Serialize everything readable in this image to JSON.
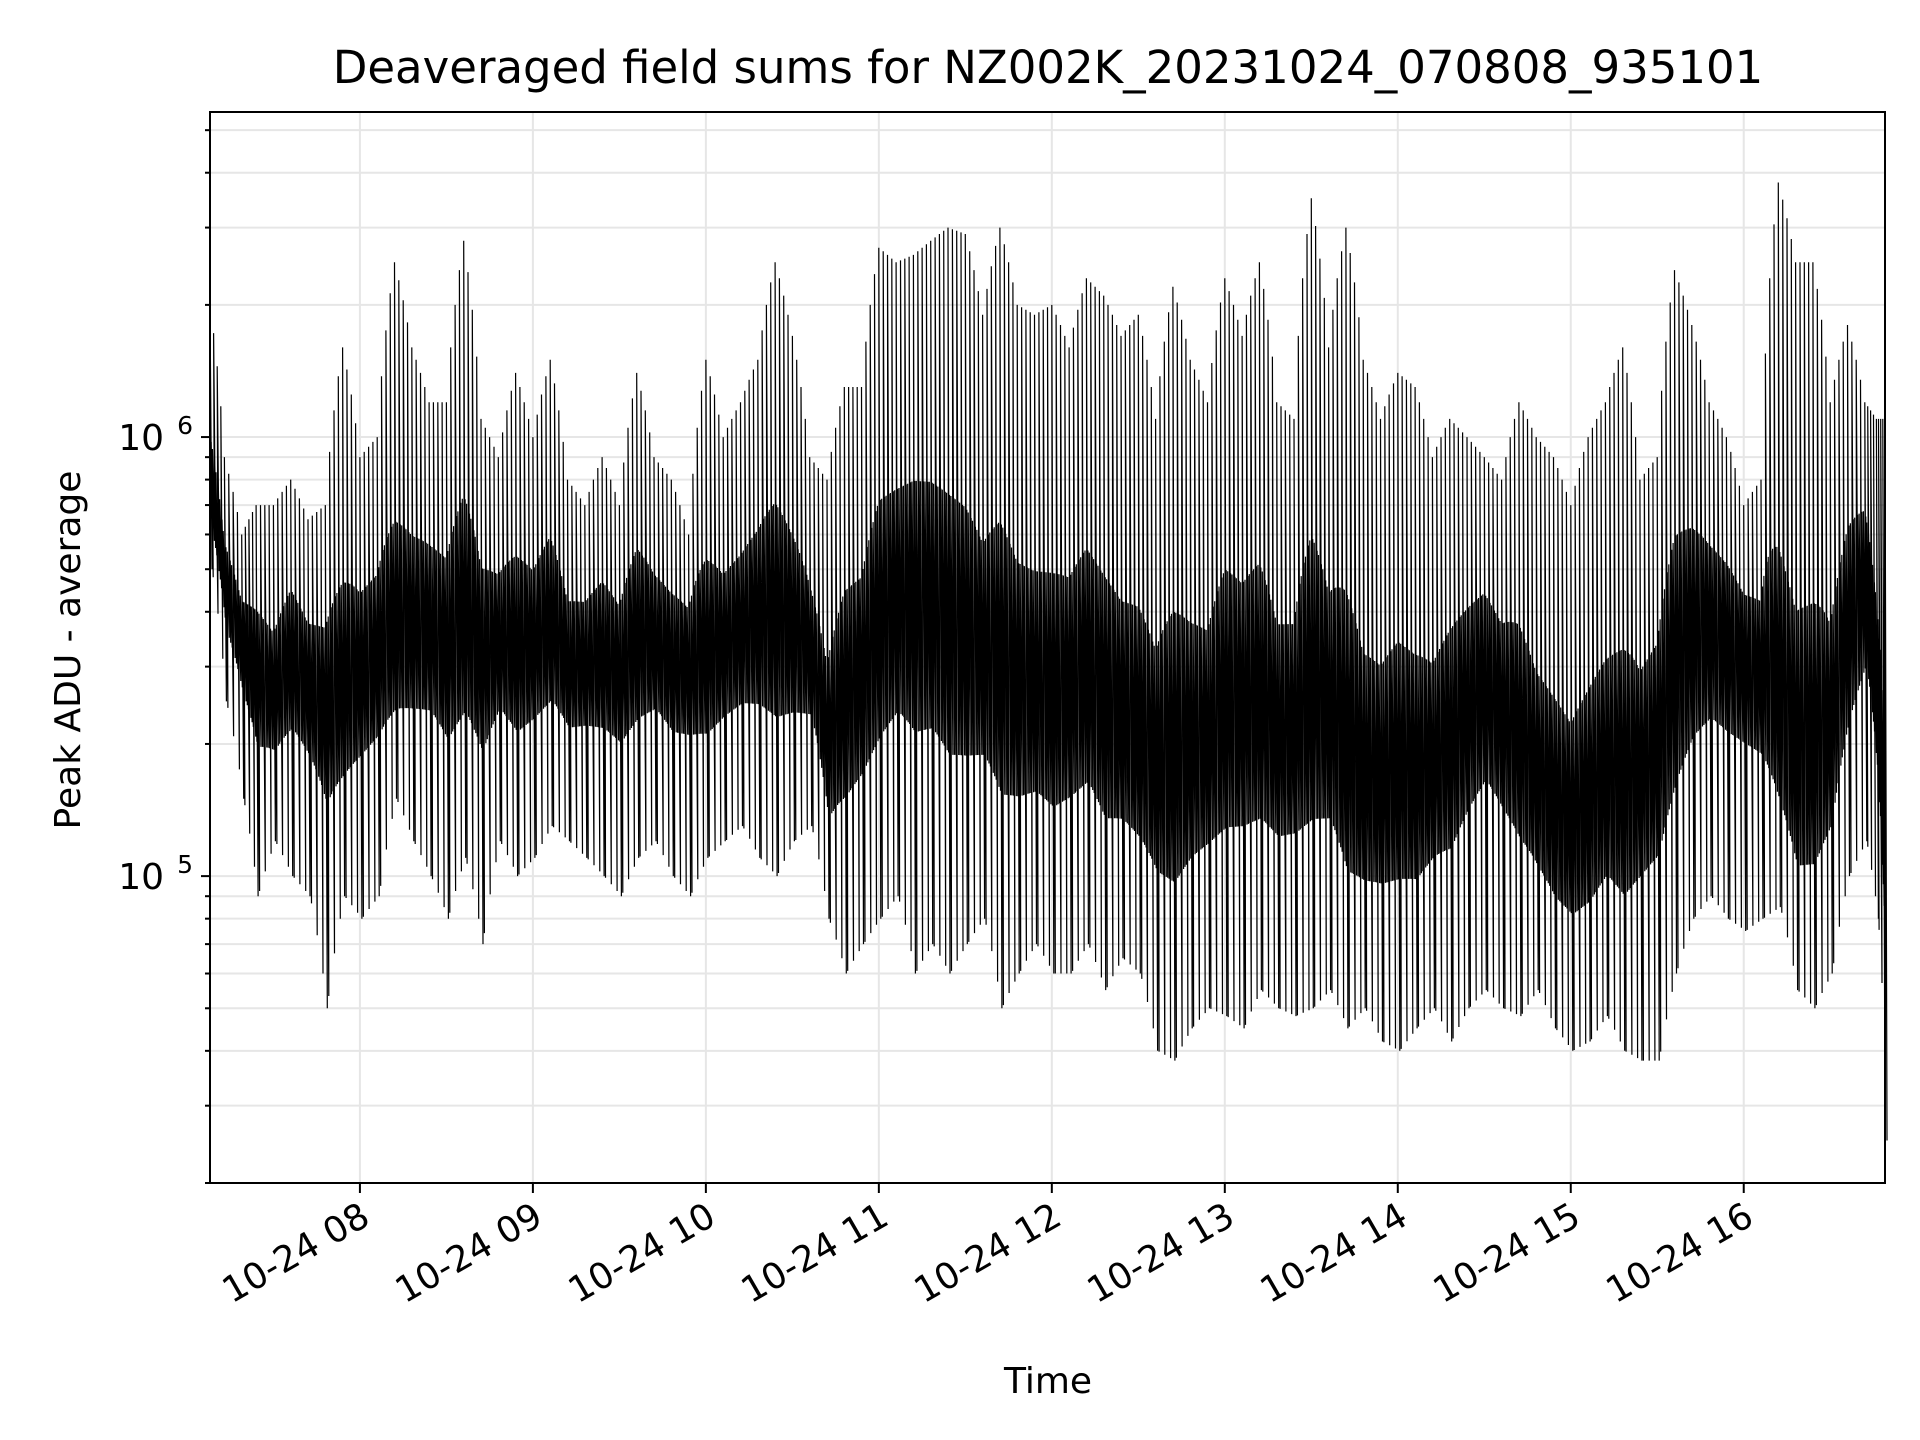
{
  "chart_data": {
    "type": "line",
    "title": "Deaveraged field sums for NZ002K_20231024_070808_935101",
    "xlabel": "Time",
    "ylabel": "Peak ADU - average",
    "yscale": "log",
    "ylim": [
      20000,
      5500000
    ],
    "xlim": [
      "2023-10-24 07:08",
      "2023-10-24 16:49"
    ],
    "grid": true,
    "line_color": "#000000",
    "grid_color": "#e6e6e6",
    "x_ticks": [
      {
        "value": "2023-10-24 08:00",
        "label": "10-24 08"
      },
      {
        "value": "2023-10-24 09:00",
        "label": "10-24 09"
      },
      {
        "value": "2023-10-24 10:00",
        "label": "10-24 10"
      },
      {
        "value": "2023-10-24 11:00",
        "label": "10-24 11"
      },
      {
        "value": "2023-10-24 12:00",
        "label": "10-24 12"
      },
      {
        "value": "2023-10-24 13:00",
        "label": "10-24 13"
      },
      {
        "value": "2023-10-24 14:00",
        "label": "10-24 14"
      },
      {
        "value": "2023-10-24 15:00",
        "label": "10-24 15"
      },
      {
        "value": "2023-10-24 16:00",
        "label": "10-24 16"
      }
    ],
    "y_ticks": [
      {
        "value": 100000,
        "label_base": "10",
        "label_exp": "5"
      },
      {
        "value": 1000000,
        "label_base": "10",
        "label_exp": "6"
      }
    ],
    "series": [
      {
        "x": [
          "2023-10-24 07:08",
          "2023-10-24 07:13",
          "2023-10-24 07:19",
          "2023-10-24 07:24",
          "2023-10-24 07:30",
          "2023-10-24 07:36",
          "2023-10-24 07:42",
          "2023-10-24 07:48",
          "2023-10-24 07:54",
          "2023-10-24 08:00",
          "2023-10-24 08:06",
          "2023-10-24 08:12",
          "2023-10-24 08:18",
          "2023-10-24 08:24",
          "2023-10-24 08:30",
          "2023-10-24 08:36",
          "2023-10-24 08:42",
          "2023-10-24 08:48",
          "2023-10-24 08:54",
          "2023-10-24 09:00",
          "2023-10-24 09:06",
          "2023-10-24 09:12",
          "2023-10-24 09:18",
          "2023-10-24 09:24",
          "2023-10-24 09:30",
          "2023-10-24 09:36",
          "2023-10-24 09:42",
          "2023-10-24 09:48",
          "2023-10-24 09:54",
          "2023-10-24 10:00",
          "2023-10-24 10:06",
          "2023-10-24 10:12",
          "2023-10-24 10:18",
          "2023-10-24 10:24",
          "2023-10-24 10:30",
          "2023-10-24 10:36",
          "2023-10-24 10:42",
          "2023-10-24 10:48",
          "2023-10-24 10:54",
          "2023-10-24 11:00",
          "2023-10-24 11:06",
          "2023-10-24 11:12",
          "2023-10-24 11:18",
          "2023-10-24 11:24",
          "2023-10-24 11:30",
          "2023-10-24 11:36",
          "2023-10-24 11:42",
          "2023-10-24 11:48",
          "2023-10-24 11:54",
          "2023-10-24 12:00",
          "2023-10-24 12:06",
          "2023-10-24 12:12",
          "2023-10-24 12:18",
          "2023-10-24 12:24",
          "2023-10-24 12:30",
          "2023-10-24 12:36",
          "2023-10-24 12:42",
          "2023-10-24 12:48",
          "2023-10-24 12:54",
          "2023-10-24 13:00",
          "2023-10-24 13:06",
          "2023-10-24 13:12",
          "2023-10-24 13:18",
          "2023-10-24 13:24",
          "2023-10-24 13:30",
          "2023-10-24 13:36",
          "2023-10-24 13:42",
          "2023-10-24 13:48",
          "2023-10-24 13:54",
          "2023-10-24 14:00",
          "2023-10-24 14:06",
          "2023-10-24 14:12",
          "2023-10-24 14:18",
          "2023-10-24 14:24",
          "2023-10-24 14:30",
          "2023-10-24 14:36",
          "2023-10-24 14:42",
          "2023-10-24 14:48",
          "2023-10-24 14:54",
          "2023-10-24 15:00",
          "2023-10-24 15:06",
          "2023-10-24 15:12",
          "2023-10-24 15:18",
          "2023-10-24 15:24",
          "2023-10-24 15:30",
          "2023-10-24 15:36",
          "2023-10-24 15:42",
          "2023-10-24 15:48",
          "2023-10-24 15:54",
          "2023-10-24 16:00",
          "2023-10-24 16:06",
          "2023-10-24 16:12",
          "2023-10-24 16:18",
          "2023-10-24 16:24",
          "2023-10-24 16:30",
          "2023-10-24 16:36",
          "2023-10-24 16:42",
          "2023-10-24 16:46",
          "2023-10-24 16:49"
        ],
        "y": [
          700000,
          450000,
          350000,
          300000,
          250000,
          330000,
          280000,
          260000,
          240000,
          300000,
          330000,
          310000,
          350000,
          380000,
          340000,
          360000,
          330000,
          350000,
          320000,
          340000,
          360000,
          300000,
          320000,
          330000,
          310000,
          340000,
          350000,
          320000,
          330000,
          300000,
          330000,
          350000,
          380000,
          360000,
          340000,
          320000,
          180000,
          250000,
          280000,
          350000,
          400000,
          420000,
          400000,
          350000,
          320000,
          300000,
          280000,
          250000,
          240000,
          230000,
          250000,
          260000,
          220000,
          200000,
          180000,
          170000,
          160000,
          180000,
          190000,
          220000,
          230000,
          220000,
          200000,
          210000,
          230000,
          220000,
          160000,
          140000,
          150000,
          160000,
          150000,
          170000,
          200000,
          250000,
          300000,
          250000,
          200000,
          150000,
          130000,
          120000,
          130000,
          150000,
          140000,
          170000,
          200000,
          280000,
          350000,
          380000,
          360000,
          340000,
          300000,
          200000,
          150000,
          160000,
          200000,
          350000,
          500000,
          250000,
          60000
        ],
        "hi": [
          2000000,
          900000,
          600000,
          700000,
          700000,
          800000,
          650000,
          700000,
          1600000,
          900000,
          1000000,
          2500000,
          1600000,
          1200000,
          1200000,
          2800000,
          1100000,
          900000,
          1400000,
          1000000,
          1500000,
          800000,
          700000,
          900000,
          700000,
          1400000,
          900000,
          800000,
          600000,
          1500000,
          1000000,
          1200000,
          1500000,
          2500000,
          1700000,
          900000,
          800000,
          1300000,
          1300000,
          2700000,
          2500000,
          2600000,
          2800000,
          3000000,
          2900000,
          1900000,
          3000000,
          2000000,
          1900000,
          2000000,
          1600000,
          2300000,
          2100000,
          1700000,
          1900000,
          1100000,
          2200000,
          1500000,
          1200000,
          2300000,
          1700000,
          2500000,
          1200000,
          1100000,
          3500000,
          1600000,
          3000000,
          1500000,
          1100000,
          1400000,
          1300000,
          900000,
          1100000,
          1000000,
          900000,
          800000,
          1200000,
          1000000,
          900000,
          700000,
          1000000,
          1200000,
          1600000,
          800000,
          900000,
          2400000,
          1800000,
          1200000,
          1000000,
          700000,
          800000,
          3800000,
          2500000,
          2500000,
          1200000,
          1800000,
          1200000,
          1100000,
          1100000
        ],
        "lo": [
          500000,
          250000,
          150000,
          90000,
          120000,
          100000,
          90000,
          50000,
          90000,
          80000,
          90000,
          150000,
          120000,
          100000,
          80000,
          110000,
          70000,
          120000,
          100000,
          110000,
          130000,
          120000,
          110000,
          100000,
          90000,
          110000,
          120000,
          100000,
          90000,
          110000,
          120000,
          130000,
          110000,
          100000,
          120000,
          130000,
          80000,
          60000,
          70000,
          80000,
          90000,
          60000,
          70000,
          60000,
          70000,
          80000,
          50000,
          60000,
          70000,
          60000,
          60000,
          70000,
          55000,
          65000,
          60000,
          40000,
          38000,
          45000,
          50000,
          48000,
          45000,
          55000,
          50000,
          48000,
          50000,
          55000,
          45000,
          50000,
          42000,
          40000,
          45000,
          50000,
          42000,
          50000,
          55000,
          50000,
          48000,
          55000,
          45000,
          40000,
          42000,
          48000,
          40000,
          38000,
          38000,
          60000,
          80000,
          90000,
          80000,
          75000,
          80000,
          85000,
          55000,
          50000,
          60000,
          100000,
          120000,
          80000,
          25000
        ]
      }
    ]
  }
}
